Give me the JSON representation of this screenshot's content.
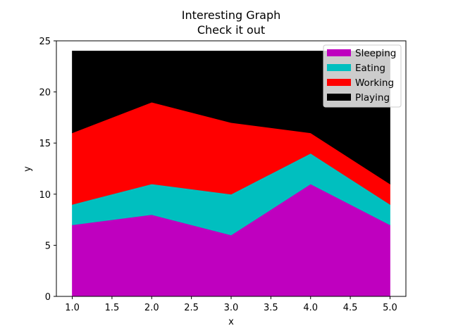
{
  "chart_data": {
    "type": "area",
    "title": "Interesting Graph",
    "subtitle": "Check it out",
    "xlabel": "x",
    "ylabel": "y",
    "x": [
      1,
      2,
      3,
      4,
      5
    ],
    "xlim": [
      0.8,
      5.2
    ],
    "ylim": [
      0,
      25
    ],
    "xticks": [
      "1.0",
      "1.5",
      "2.0",
      "2.5",
      "3.0",
      "3.5",
      "4.0",
      "4.5",
      "5.0"
    ],
    "yticks": [
      "0",
      "5",
      "10",
      "15",
      "20",
      "25"
    ],
    "stacked": true,
    "grid": false,
    "legend_position": "top-right",
    "series": [
      {
        "name": "Sleeping",
        "values": [
          7,
          8,
          6,
          11,
          7
        ],
        "color": "#bf00bf"
      },
      {
        "name": "Eating",
        "values": [
          2,
          3,
          4,
          3,
          2
        ],
        "color": "#00bfbf"
      },
      {
        "name": "Working",
        "values": [
          7,
          8,
          7,
          2,
          2
        ],
        "color": "#ff0000"
      },
      {
        "name": "Playing",
        "values": [
          8,
          5,
          7,
          8,
          13
        ],
        "color": "#000000"
      }
    ]
  }
}
